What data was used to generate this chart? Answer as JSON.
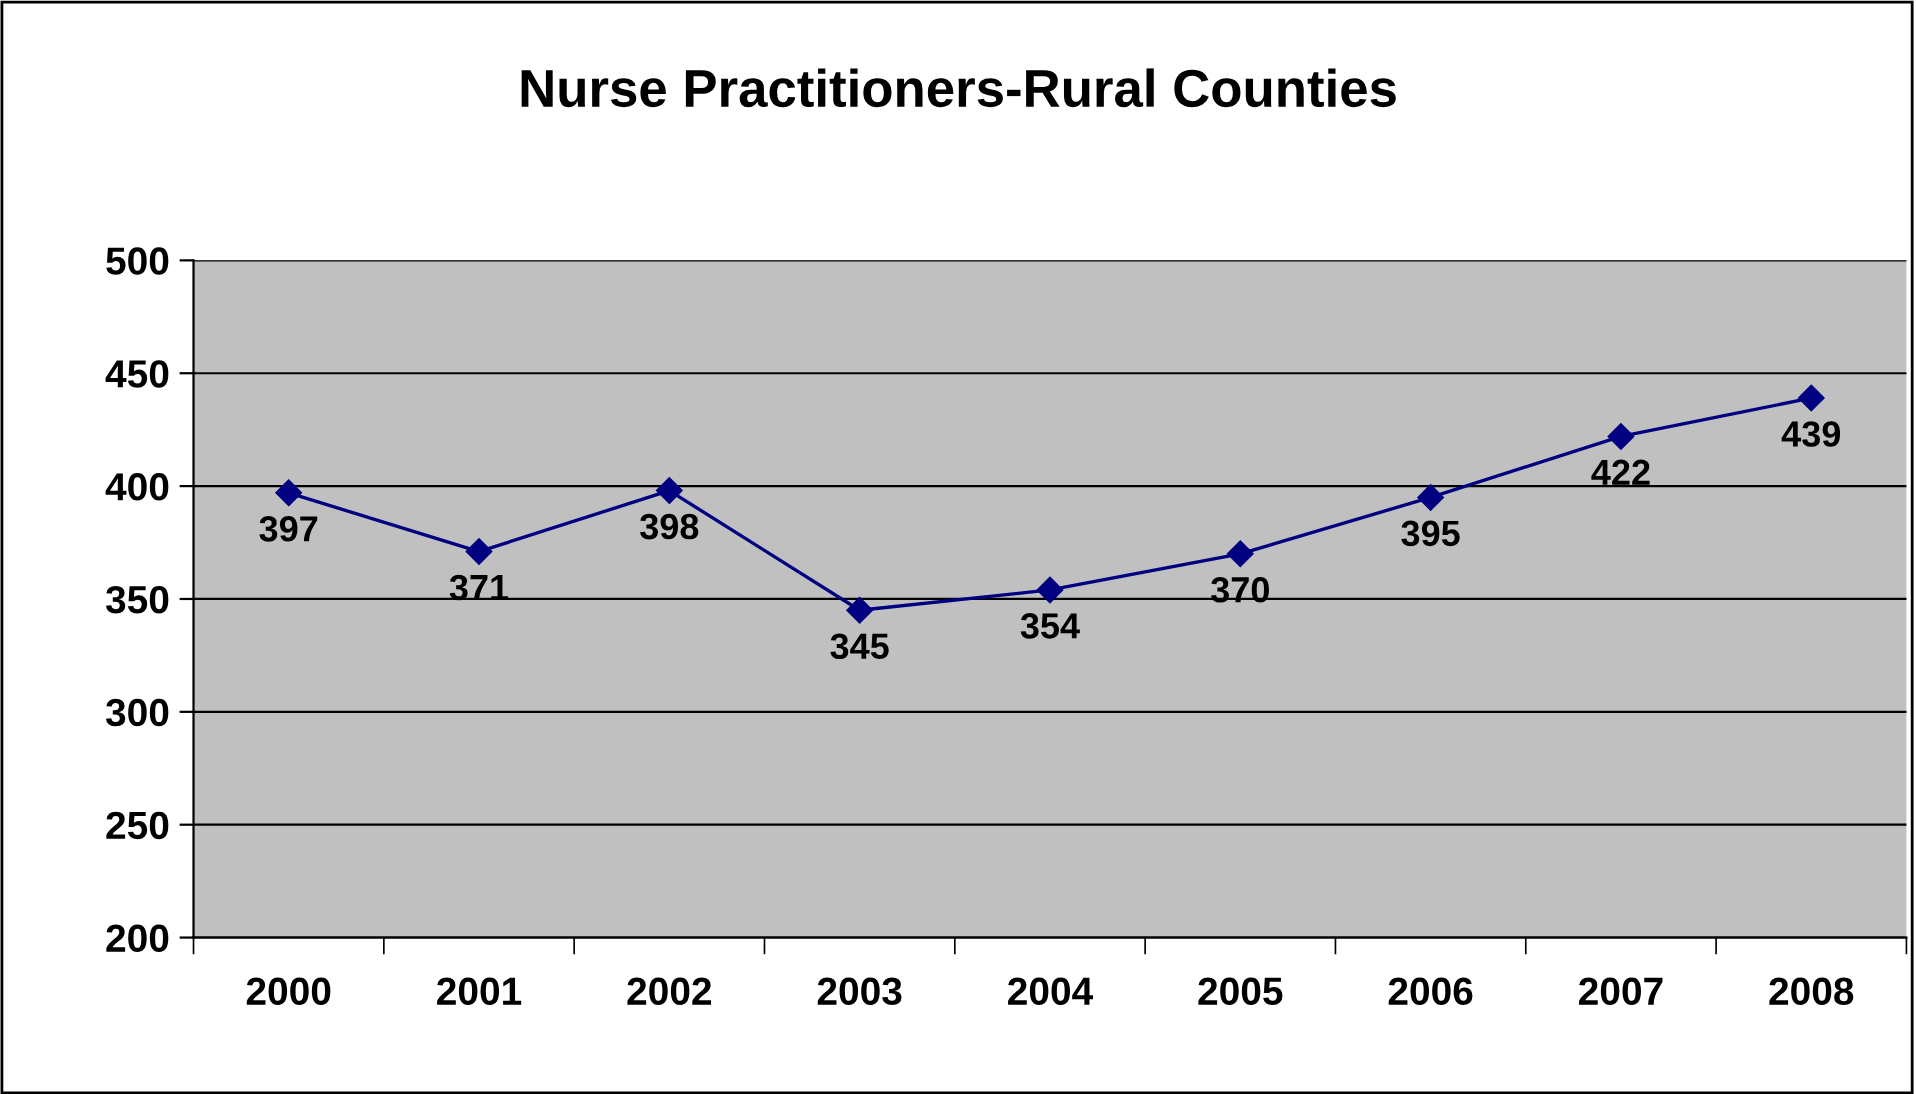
{
  "chart_data": {
    "type": "line",
    "title": "Nurse Practitioners-Rural Counties",
    "categories": [
      "2000",
      "2001",
      "2002",
      "2003",
      "2004",
      "2005",
      "2006",
      "2007",
      "2008"
    ],
    "series": [
      {
        "color": "#000080",
        "values": [
          397,
          371,
          398,
          345,
          354,
          370,
          395,
          422,
          439
        ]
      }
    ],
    "ylim": [
      200,
      500
    ],
    "yticks": [
      200,
      250,
      300,
      350,
      400,
      450,
      500
    ],
    "grid": "y",
    "marker": "diamond",
    "line_style": "solid",
    "data_labels": true,
    "legend": false
  }
}
